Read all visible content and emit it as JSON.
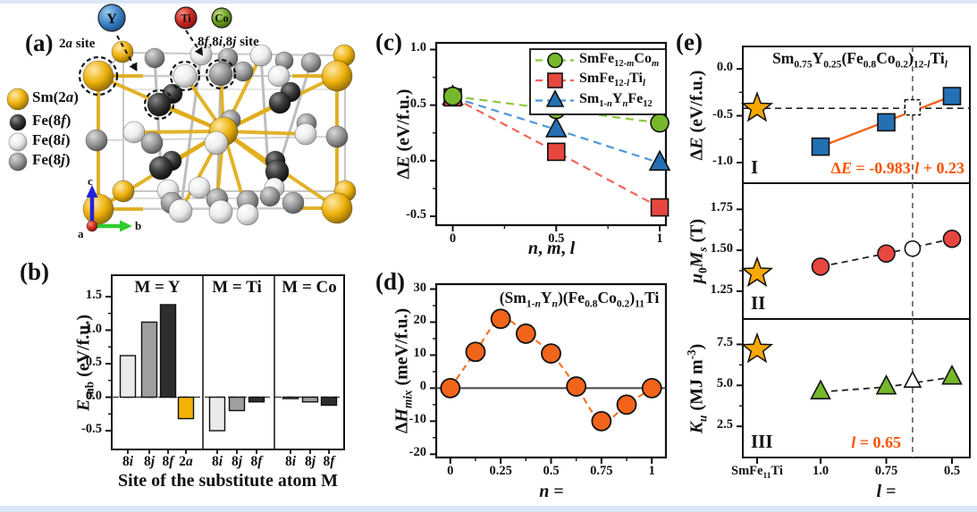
{
  "page": {
    "edge_strip_color": "#dbe7f7",
    "background": "#ffffff"
  },
  "panels": {
    "a": "(a)",
    "b": "(b)",
    "c": "(c)",
    "d": "(d)",
    "e": "(e)"
  },
  "panel_a": {
    "site_label_2a": "2*a* site",
    "site_label_8": "8*f*,8*i*,8*j* site",
    "species": [
      {
        "symbol": "Y",
        "color": "#3b7fc4"
      },
      {
        "symbol": "Ti",
        "color": "#cc2420"
      },
      {
        "symbol": "Co",
        "color": "#6c9e1f"
      }
    ],
    "legend": [
      {
        "label": "Sm(2*a*)",
        "atom": "gold"
      },
      {
        "label": "Fe(8*f*)",
        "atom": "black"
      },
      {
        "label": "Fe(8*i*)",
        "atom": "white"
      },
      {
        "label": "Fe(8*j*)",
        "atom": "gray"
      }
    ],
    "axis_labels": {
      "c": "c",
      "b": "b",
      "a": "a"
    }
  },
  "chart_data": [
    {
      "id": "b",
      "type": "bar",
      "xlabel": "Site of the substitute atom M",
      "ylabel": "*E*_{sub} (eV/f.u.)",
      "yticks": [
        "-0.5",
        "0.0",
        "0.5",
        "1.0",
        "1.5"
      ],
      "ylim": [
        -0.78,
        1.82
      ],
      "zero_line": "dashed",
      "groups": [
        {
          "label": "M = Y",
          "categories": [
            "8*i*",
            "8*j*",
            "8*f*",
            "2*a*"
          ],
          "values": [
            0.62,
            1.12,
            1.38,
            -0.32
          ],
          "colors": [
            "#eaeaea",
            "#9f9f9f",
            "#2d2d2d",
            "#f5b301"
          ]
        },
        {
          "label": "M = Ti",
          "categories": [
            "8*i*",
            "8*j*",
            "8*f*"
          ],
          "values": [
            -0.5,
            -0.2,
            -0.07
          ],
          "colors": [
            "#eaeaea",
            "#9f9f9f",
            "#2d2d2d"
          ]
        },
        {
          "label": "M = Co",
          "categories": [
            "8*i*",
            "8*j*",
            "8*f*"
          ],
          "values": [
            -0.02,
            -0.07,
            -0.12
          ],
          "colors": [
            "#eaeaea",
            "#9f9f9f",
            "#2d2d2d"
          ]
        }
      ]
    },
    {
      "id": "c",
      "type": "line",
      "xlabel": "*n*, *m*, *l*",
      "ylabel": "Δ*E* (eV/f.u.)",
      "x": [
        0,
        0.5,
        1
      ],
      "xticks": [
        "0",
        "0.5",
        "1"
      ],
      "yticks": [
        "-0.5",
        "0.0",
        "0.5",
        "1.0"
      ],
      "xlim": [
        -0.08,
        1.03
      ],
      "ylim": [
        -0.58,
        1.06
      ],
      "legend_position": "top-right",
      "series": [
        {
          "name": "SmFe_{12-*m*}Co_{*m*}",
          "marker": "circle",
          "fill": "#76b82a",
          "line": "#8cc63e",
          "values": [
            0.58,
            0.46,
            0.34
          ]
        },
        {
          "name": "SmFe_{12-*l*}Ti_{*l*}",
          "marker": "square",
          "fill": "#e8473f",
          "line": "#f4645a",
          "values": [
            0.57,
            0.08,
            -0.42
          ]
        },
        {
          "name": "Sm_{1-*n*}Y_{*n*}Fe_{12}",
          "marker": "triangle",
          "fill": "#2470b5",
          "line": "#4e97d9",
          "values": [
            0.57,
            0.28,
            -0.02
          ]
        }
      ]
    },
    {
      "id": "d",
      "type": "scatter",
      "title": "(Sm_{1-*n*}Y_{*n*})(Fe_{0.8}Co_{0.2})_{11}Ti",
      "xlabel": "*n* =",
      "ylabel": "Δ*H*_{*mix*} (meV/f.u.)",
      "x": [
        0,
        0.125,
        0.25,
        0.375,
        0.5,
        0.625,
        0.75,
        0.875,
        1
      ],
      "values": [
        0,
        11,
        21,
        16.5,
        10.5,
        0.5,
        -10,
        -5,
        0
      ],
      "xticks": [
        "0",
        "0.25",
        "0.5",
        "0.75",
        "1"
      ],
      "yticks": [
        "-20",
        "-10",
        "0",
        "10",
        "20",
        "30"
      ],
      "xlim": [
        -0.07,
        1.07
      ],
      "ylim": [
        -21,
        31.5
      ],
      "marker": "circle",
      "fill": "#f26419",
      "curve_color": "#f4732a",
      "zero_line": "solid"
    },
    {
      "id": "e",
      "type": "multi-panel-line",
      "title": "Sm_{0.75}Y_{0.25}(Fe_{0.8}Co_{0.2})_{12-*l*}Ti_{*l*}",
      "xlabel": "*l* =",
      "xticks": [
        "SmFe_{11}Ti",
        "1.0",
        "0.75",
        "0.5"
      ],
      "x": [
        1.0,
        0.75,
        0.5
      ],
      "x_axis_reversed": true,
      "reference_l": 0.65,
      "star_color": "#f5a800",
      "panels": [
        {
          "numeral": "I",
          "ylabel": "Δ*E* (eV/f.u.)",
          "yticks": [
            "0.0",
            "-0.5",
            "-1.0"
          ],
          "ytick_vals": [
            0,
            -0.5,
            -1
          ],
          "ylim": [
            -1.22,
            0.24
          ],
          "marker": "square",
          "fill": "#2470b5",
          "values": [
            -0.83,
            -0.57,
            -0.29
          ],
          "open_point": {
            "l": 0.65,
            "y": -0.41
          },
          "star_y": -0.42,
          "hline": -0.42,
          "fit_color": "#f26419",
          "annotation": "Δ*E* = -0.983 *l* + 0.23"
        },
        {
          "numeral": "II",
          "ylabel": "*μ*_{0}*M*_{*s*} (T)",
          "yticks": [
            "1.75",
            "1.50",
            "1.25"
          ],
          "ytick_vals": [
            1.75,
            1.5,
            1.25
          ],
          "ylim": [
            1.08,
            1.91
          ],
          "marker": "circle",
          "fill": "#e8473f",
          "values": [
            1.4,
            1.48,
            1.57
          ],
          "open_point": {
            "l": 0.65,
            "y": 1.51
          },
          "star_y": 1.36,
          "dash_line": true
        },
        {
          "numeral": "III",
          "ylabel": "*K*_{*u*} (MJ m^{-3})",
          "yticks": [
            "7.5",
            "5.0",
            "2.5"
          ],
          "ytick_vals": [
            7.5,
            5,
            2.5
          ],
          "ylim": [
            0.6,
            9.05
          ],
          "marker": "triangle",
          "fill": "#76b82a",
          "values": [
            4.6,
            4.9,
            5.5
          ],
          "open_point": {
            "l": 0.65,
            "y": 5.25
          },
          "star_y": 7.2,
          "dash_line": true,
          "annotation": "*l* = 0.65"
        }
      ]
    }
  ]
}
